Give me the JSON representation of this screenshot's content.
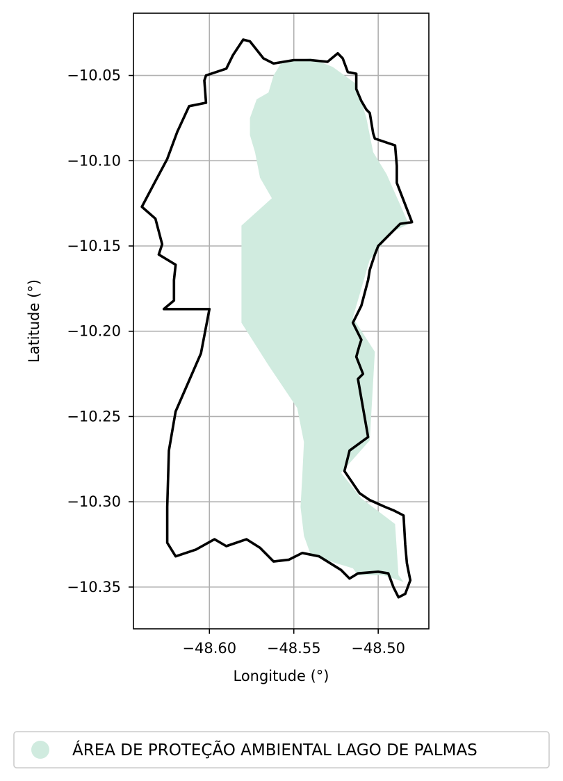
{
  "chart_data": {
    "type": "map",
    "xlabel": "Longitude (°)",
    "ylabel": "Latitude (°)",
    "xlim": [
      -48.645,
      -48.47
    ],
    "ylim": [
      -10.3745,
      -10.0135
    ],
    "x_ticks": [
      {
        "value": -48.6,
        "label": "−48.60"
      },
      {
        "value": -48.55,
        "label": "−48.55"
      },
      {
        "value": -48.5,
        "label": "−48.50"
      }
    ],
    "y_ticks": [
      {
        "value": -10.05,
        "label": "−10.05"
      },
      {
        "value": -10.1,
        "label": "−10.10"
      },
      {
        "value": -10.15,
        "label": "−10.15"
      },
      {
        "value": -10.2,
        "label": "−10.20"
      },
      {
        "value": -10.25,
        "label": "−10.25"
      },
      {
        "value": -10.3,
        "label": "−10.30"
      },
      {
        "value": -10.35,
        "label": "−10.35"
      }
    ],
    "grid": true,
    "legend_position": "bottom",
    "layers": [
      {
        "name": "ÁREA DE PROTEÇÃO AMBIENTAL LAGO DE PALMAS",
        "geometry": "polygon",
        "fill_color": "#d0ebdf",
        "coordinates": [
          [
            -48.557,
            -10.042
          ],
          [
            -48.54,
            -10.04
          ],
          [
            -48.527,
            -10.045
          ],
          [
            -48.513,
            -10.055
          ],
          [
            -48.507,
            -10.075
          ],
          [
            -48.503,
            -10.095
          ],
          [
            -48.495,
            -10.108
          ],
          [
            -48.482,
            -10.137
          ],
          [
            -48.492,
            -10.142
          ],
          [
            -48.505,
            -10.158
          ],
          [
            -48.515,
            -10.192
          ],
          [
            -48.502,
            -10.212
          ],
          [
            -48.505,
            -10.264
          ],
          [
            -48.522,
            -10.283
          ],
          [
            -48.51,
            -10.298
          ],
          [
            -48.49,
            -10.313
          ],
          [
            -48.488,
            -10.343
          ],
          [
            -48.485,
            -10.347
          ],
          [
            -48.497,
            -10.343
          ],
          [
            -48.512,
            -10.343
          ],
          [
            -48.515,
            -10.339
          ],
          [
            -48.525,
            -10.336
          ],
          [
            -48.54,
            -10.331
          ],
          [
            -48.544,
            -10.32
          ],
          [
            -48.546,
            -10.303
          ],
          [
            -48.545,
            -10.285
          ],
          [
            -48.544,
            -10.265
          ],
          [
            -48.548,
            -10.245
          ],
          [
            -48.565,
            -10.22
          ],
          [
            -48.581,
            -10.195
          ],
          [
            -48.581,
            -10.138
          ],
          [
            -48.563,
            -10.122
          ],
          [
            -48.57,
            -10.11
          ],
          [
            -48.573,
            -10.095
          ],
          [
            -48.576,
            -10.085
          ],
          [
            -48.576,
            -10.075
          ],
          [
            -48.572,
            -10.064
          ],
          [
            -48.565,
            -10.06
          ],
          [
            -48.562,
            -10.05
          ]
        ]
      },
      {
        "name": "boundary",
        "geometry": "line",
        "stroke_color": "#000000",
        "coordinates": [
          [
            -48.6,
            -10.187
          ],
          [
            -48.627,
            -10.187
          ],
          [
            -48.621,
            -10.182
          ],
          [
            -48.621,
            -10.17
          ],
          [
            -48.62,
            -10.161
          ],
          [
            -48.63,
            -10.155
          ],
          [
            -48.628,
            -10.149
          ],
          [
            -48.632,
            -10.134
          ],
          [
            -48.64,
            -10.127
          ],
          [
            -48.632,
            -10.112
          ],
          [
            -48.625,
            -10.099
          ],
          [
            -48.619,
            -10.083
          ],
          [
            -48.612,
            -10.068
          ],
          [
            -48.602,
            -10.066
          ],
          [
            -48.603,
            -10.053
          ],
          [
            -48.602,
            -10.05
          ],
          [
            -48.596,
            -10.048
          ],
          [
            -48.59,
            -10.046
          ],
          [
            -48.586,
            -10.038
          ],
          [
            -48.58,
            -10.029
          ],
          [
            -48.576,
            -10.03
          ],
          [
            -48.568,
            -10.04
          ],
          [
            -48.562,
            -10.043
          ],
          [
            -48.55,
            -10.041
          ],
          [
            -48.54,
            -10.041
          ],
          [
            -48.53,
            -10.042
          ],
          [
            -48.524,
            -10.037
          ],
          [
            -48.521,
            -10.04
          ],
          [
            -48.518,
            -10.048
          ],
          [
            -48.513,
            -10.049
          ],
          [
            -48.513,
            -10.058
          ],
          [
            -48.51,
            -10.065
          ],
          [
            -48.507,
            -10.07
          ],
          [
            -48.505,
            -10.072
          ],
          [
            -48.503,
            -10.084
          ],
          [
            -48.502,
            -10.087
          ],
          [
            -48.493,
            -10.09
          ],
          [
            -48.49,
            -10.091
          ],
          [
            -48.489,
            -10.103
          ],
          [
            -48.489,
            -10.113
          ],
          [
            -48.48,
            -10.136
          ],
          [
            -48.487,
            -10.137
          ],
          [
            -48.493,
            -10.143
          ],
          [
            -48.5,
            -10.15
          ],
          [
            -48.502,
            -10.155
          ],
          [
            -48.505,
            -10.164
          ],
          [
            -48.506,
            -10.17
          ],
          [
            -48.51,
            -10.185
          ],
          [
            -48.515,
            -10.195
          ],
          [
            -48.51,
            -10.205
          ],
          [
            -48.511,
            -10.208
          ],
          [
            -48.513,
            -10.215
          ],
          [
            -48.509,
            -10.225
          ],
          [
            -48.512,
            -10.228
          ],
          [
            -48.506,
            -10.262
          ],
          [
            -48.517,
            -10.27
          ],
          [
            -48.52,
            -10.282
          ],
          [
            -48.511,
            -10.295
          ],
          [
            -48.505,
            -10.299
          ],
          [
            -48.496,
            -10.303
          ],
          [
            -48.491,
            -10.305
          ],
          [
            -48.485,
            -10.308
          ],
          [
            -48.484,
            -10.325
          ],
          [
            -48.483,
            -10.336
          ],
          [
            -48.481,
            -10.346
          ],
          [
            -48.484,
            -10.354
          ],
          [
            -48.488,
            -10.356
          ],
          [
            -48.491,
            -10.35
          ],
          [
            -48.494,
            -10.342
          ],
          [
            -48.5,
            -10.341
          ],
          [
            -48.512,
            -10.342
          ],
          [
            -48.517,
            -10.345
          ],
          [
            -48.522,
            -10.34
          ],
          [
            -48.535,
            -10.332
          ],
          [
            -48.545,
            -10.33
          ],
          [
            -48.553,
            -10.334
          ],
          [
            -48.562,
            -10.335
          ],
          [
            -48.57,
            -10.327
          ],
          [
            -48.578,
            -10.322
          ],
          [
            -48.59,
            -10.326
          ],
          [
            -48.597,
            -10.322
          ],
          [
            -48.608,
            -10.328
          ],
          [
            -48.62,
            -10.332
          ],
          [
            -48.625,
            -10.324
          ],
          [
            -48.625,
            -10.303
          ],
          [
            -48.624,
            -10.27
          ],
          [
            -48.62,
            -10.247
          ],
          [
            -48.605,
            -10.213
          ],
          [
            -48.6,
            -10.187
          ]
        ]
      }
    ],
    "legend": [
      {
        "label": "ÁREA DE PROTEÇÃO AMBIENTAL LAGO DE PALMAS",
        "color": "#d0ebdf",
        "marker": "circle"
      }
    ]
  }
}
